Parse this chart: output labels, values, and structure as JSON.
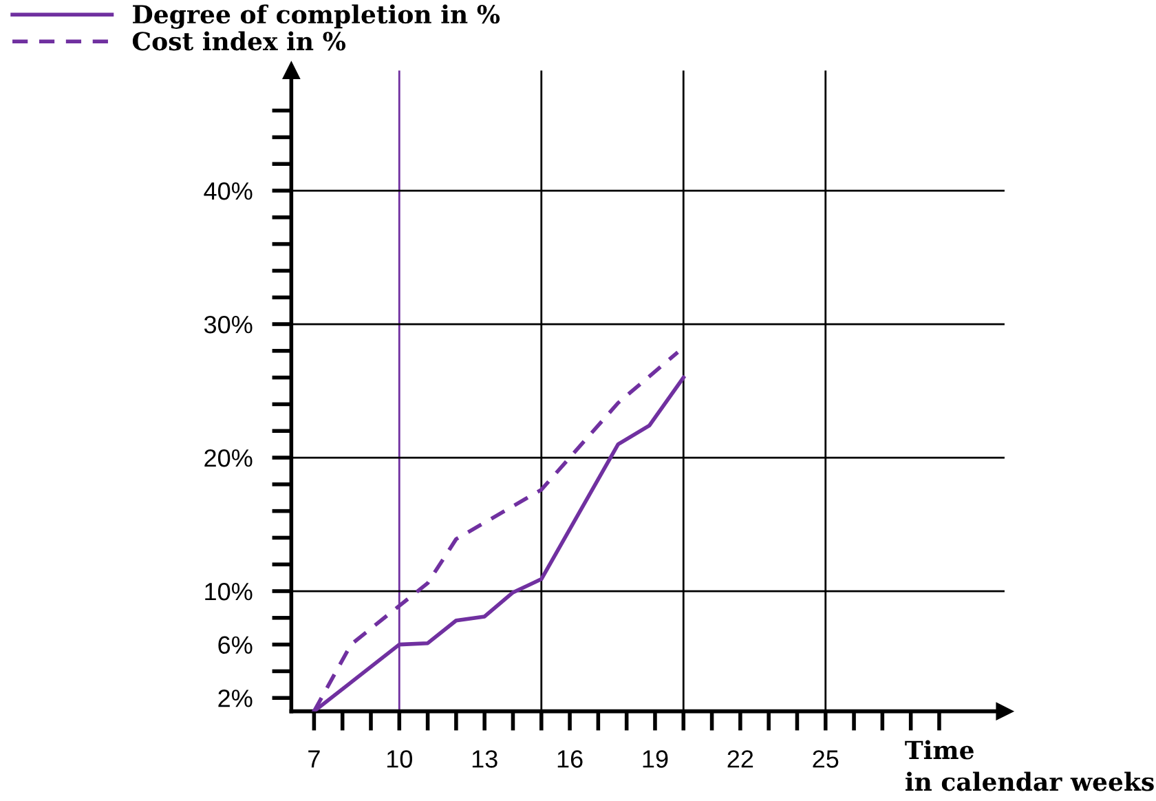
{
  "chart_data": {
    "type": "line",
    "xlabel": "Time\nin calendar weeks",
    "series": [
      {
        "name": "Degree of completion in %",
        "color": "#7030a0",
        "line_style": "solid",
        "x": [
          7,
          10,
          11,
          12,
          13,
          14,
          15,
          17.7,
          18.8,
          20
        ],
        "values": [
          1,
          6,
          6.1,
          7.8,
          8.1,
          9.9,
          10.9,
          21,
          22.4,
          26
        ]
      },
      {
        "name": "Cost index in %",
        "color": "#7030a0",
        "line_style": "dashed",
        "x": [
          7,
          8.3,
          10,
          11,
          12,
          15,
          17.7,
          19.8
        ],
        "values": [
          1,
          6,
          8.9,
          10.6,
          13.9,
          17.6,
          24.1,
          27.9
        ]
      }
    ],
    "xlim": [
      6.2,
      31.3
    ],
    "ylim": [
      1,
      49
    ],
    "xticks": [
      {
        "value": 7,
        "label": "7"
      },
      {
        "value": 8,
        "label": null
      },
      {
        "value": 9,
        "label": null
      },
      {
        "value": 10,
        "label": "10"
      },
      {
        "value": 11,
        "label": null
      },
      {
        "value": 12,
        "label": null
      },
      {
        "value": 13,
        "label": "13"
      },
      {
        "value": 14,
        "label": null
      },
      {
        "value": 15,
        "label": null
      },
      {
        "value": 16,
        "label": "16"
      },
      {
        "value": 17,
        "label": null
      },
      {
        "value": 18,
        "label": null
      },
      {
        "value": 19,
        "label": "19"
      },
      {
        "value": 20,
        "label": null
      },
      {
        "value": 21,
        "label": null
      },
      {
        "value": 22,
        "label": "22"
      },
      {
        "value": 23,
        "label": null
      },
      {
        "value": 24,
        "label": null
      },
      {
        "value": 25,
        "label": "25"
      },
      {
        "value": 26,
        "label": null
      },
      {
        "value": 27,
        "label": null
      },
      {
        "value": 28,
        "label": null
      },
      {
        "value": 29,
        "label": null
      }
    ],
    "yticks": [
      {
        "value": 2,
        "label": "2%"
      },
      {
        "value": 4,
        "label": null
      },
      {
        "value": 6,
        "label": "6%"
      },
      {
        "value": 8,
        "label": null
      },
      {
        "value": 10,
        "label": "10%"
      },
      {
        "value": 12,
        "label": null
      },
      {
        "value": 14,
        "label": null
      },
      {
        "value": 16,
        "label": null
      },
      {
        "value": 18,
        "label": null
      },
      {
        "value": 20,
        "label": "20%"
      },
      {
        "value": 22,
        "label": null
      },
      {
        "value": 24,
        "label": null
      },
      {
        "value": 26,
        "label": null
      },
      {
        "value": 28,
        "label": null
      },
      {
        "value": 30,
        "label": "30%"
      },
      {
        "value": 32,
        "label": null
      },
      {
        "value": 34,
        "label": null
      },
      {
        "value": 36,
        "label": null
      },
      {
        "value": 38,
        "label": null
      },
      {
        "value": 40,
        "label": "40%"
      },
      {
        "value": 42,
        "label": null
      },
      {
        "value": 44,
        "label": null
      },
      {
        "value": 46,
        "label": null
      }
    ],
    "ref_lines": [
      {
        "axis": "x",
        "value": 10,
        "color": "#7030a0"
      },
      {
        "axis": "x",
        "value": 15,
        "color": "#000000"
      },
      {
        "axis": "x",
        "value": 20,
        "color": "#000000"
      },
      {
        "axis": "x",
        "value": 25,
        "color": "#000000"
      },
      {
        "axis": "y",
        "value": 10,
        "color": "#000000"
      },
      {
        "axis": "y",
        "value": 20,
        "color": "#000000"
      },
      {
        "axis": "y",
        "value": 30,
        "color": "#000000"
      },
      {
        "axis": "y",
        "value": 40,
        "color": "#000000"
      }
    ],
    "grid": false,
    "legend": "top left",
    "marker": "none"
  }
}
